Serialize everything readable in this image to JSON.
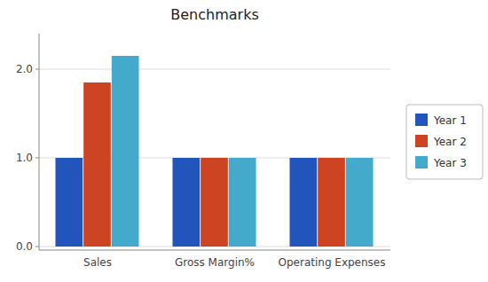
{
  "chart_data": {
    "type": "bar",
    "title": "Benchmarks",
    "categories": [
      "Sales",
      "Gross Margin%",
      "Operating Expenses"
    ],
    "series": [
      {
        "name": "Year 1",
        "color": "#2255BB",
        "values": [
          1.0,
          1.0,
          1.0
        ]
      },
      {
        "name": "Year 2",
        "color": "#CC4422",
        "values": [
          1.85,
          1.0,
          1.0
        ]
      },
      {
        "name": "Year 3",
        "color": "#44AACC",
        "values": [
          2.15,
          1.0,
          1.0
        ]
      }
    ],
    "ylim": [
      -0.04,
      2.4
    ],
    "yticks": [
      {
        "value": 0.0,
        "label": "0.0"
      },
      {
        "value": 1.0,
        "label": "1.0"
      },
      {
        "value": 2.0,
        "label": "2.0"
      }
    ],
    "grid": true,
    "legend": "right"
  }
}
